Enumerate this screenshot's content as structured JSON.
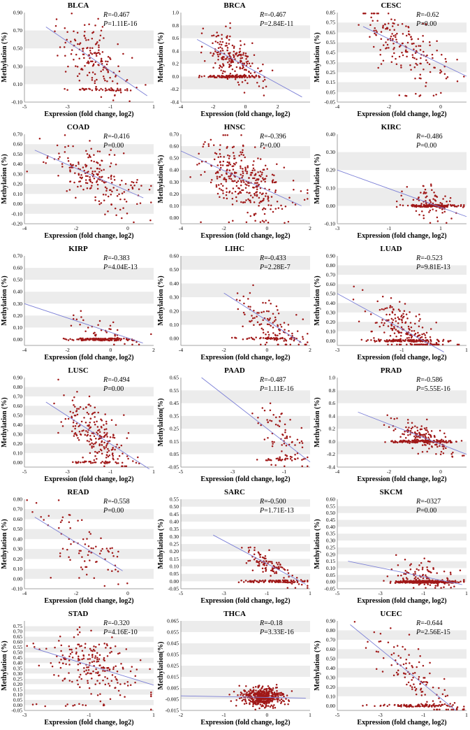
{
  "figure": {
    "colors": {
      "point": "#a01818",
      "fit_line": "#7b7fd6",
      "band": "#ececec",
      "axis": "#888888"
    }
  },
  "chart_data": [
    {
      "type": "scatter",
      "title": "BLCA",
      "xlabel": "Expression (fold change, log2)",
      "ylabel": "Methylation (%)",
      "xlim": [
        -5,
        1
      ],
      "xticks": [
        "-5",
        "-3",
        "-1",
        "1"
      ],
      "ylim": [
        -0.1,
        0.9
      ],
      "yticks": [
        "-0.10",
        "0.10",
        "0.30",
        "0.50",
        "0.70",
        "0.90"
      ],
      "fit": [
        [
          -4,
          0.74
        ],
        [
          0.7,
          -0.03
        ]
      ],
      "r_label": "R",
      "r_value": "=-0.467",
      "p_label": "P",
      "p_value": "=1.11E-16",
      "n_points": 200,
      "x_mean": -1.6,
      "x_sd": 0.85,
      "jitter": 0.17,
      "floor": 0.04,
      "floor_frac": 0.18,
      "seed": 1
    },
    {
      "type": "scatter",
      "title": "BRCA",
      "xlabel": "Expression (fold change, log2)",
      "ylabel": "Methylation (%)",
      "xlim": [
        -4,
        4
      ],
      "xticks": [
        "-4",
        "-2",
        "0",
        "2"
      ],
      "ylim": [
        -0.4,
        1.0
      ],
      "yticks": [
        "-0.4",
        "-0.2",
        "0.0",
        "0.2",
        "0.4",
        "0.6",
        "0.8",
        "1.0"
      ],
      "fit": [
        [
          -3,
          0.58
        ],
        [
          3.5,
          -0.32
        ]
      ],
      "r_label": "R",
      "r_value": "=-0.467",
      "p_label": "P",
      "p_value": "=2.84E-11",
      "n_points": 320,
      "x_mean": -0.8,
      "x_sd": 0.9,
      "jitter": 0.16,
      "floor": 0.0,
      "floor_frac": 0.4,
      "seed": 2
    },
    {
      "type": "scatter",
      "title": "CESC",
      "xlabel": "Expression (fold change, log2)",
      "ylabel": "Methylation (%)",
      "xlim": [
        -4,
        1
      ],
      "xticks": [
        "-4",
        "-2",
        "0"
      ],
      "ylim": [
        -0.05,
        0.85
      ],
      "yticks": [
        "-0.05",
        "0.05",
        "0.15",
        "0.25",
        "0.35",
        "0.45",
        "0.55",
        "0.65",
        "0.75",
        "0.85"
      ],
      "fit": [
        [
          -3,
          0.71
        ],
        [
          1,
          0.21
        ]
      ],
      "r_label": "R",
      "r_value": "=-0.62",
      "p_label": "P",
      "p_value": "=0.00",
      "n_points": 180,
      "x_mean": -1.4,
      "x_sd": 0.8,
      "jitter": 0.15,
      "floor": 0.02,
      "floor_frac": 0.05,
      "seed": 3
    },
    {
      "type": "scatter",
      "title": "COAD",
      "xlabel": "Expression (fold change, log2)",
      "ylabel": "Methylation (%)",
      "xlim": [
        -4,
        1
      ],
      "xticks": [
        "-4",
        "-2",
        "0"
      ],
      "ylim": [
        -0.2,
        0.7
      ],
      "yticks": [
        "-0.20",
        "-0.10",
        "0.00",
        "0.10",
        "0.20",
        "0.30",
        "0.40",
        "0.50",
        "0.60",
        "0.70"
      ],
      "fit": [
        [
          -3.6,
          0.54
        ],
        [
          0.6,
          0.06
        ]
      ],
      "r_label": "R",
      "r_value": "=-0.416",
      "p_label": "P",
      "p_value": "=0.00",
      "n_points": 200,
      "x_mean": -1.3,
      "x_sd": 0.9,
      "jitter": 0.14,
      "floor": 0.0,
      "floor_frac": 0.03,
      "seed": 4
    },
    {
      "type": "scatter",
      "title": "HNSC",
      "xlabel": "Expression (fold change, log2)",
      "ylabel": "Methylation(%)",
      "xlim": [
        -4,
        2
      ],
      "xticks": [
        "-4",
        "-2",
        "0",
        "2"
      ],
      "ylim": [
        -0.05,
        0.7
      ],
      "yticks": [
        "0.00",
        "0.10",
        "0.20",
        "0.30",
        "0.40",
        "0.50",
        "0.60",
        "0.70"
      ],
      "fit": [
        [
          -4,
          0.56
        ],
        [
          1.6,
          0.1
        ]
      ],
      "r_label": "R",
      "r_value": "=-0.396",
      "p_label": "P",
      "p_value": "=0.00",
      "n_points": 330,
      "x_mean": -1.1,
      "x_sd": 1.0,
      "jitter": 0.13,
      "floor": -0.03,
      "floor_frac": 0.04,
      "seed": 5
    },
    {
      "type": "scatter",
      "title": "KIRC",
      "xlabel": "Expression (fold change, log2)",
      "ylabel": "Methylation (%)",
      "xlim": [
        -3,
        2
      ],
      "xticks": [
        "-3",
        "-1",
        "1"
      ],
      "ylim": [
        -0.1,
        0.4
      ],
      "yticks": [
        "-0.10",
        "0.00",
        "0.10",
        "0.20",
        "0.30",
        "0.40"
      ],
      "fit": [
        [
          -3,
          0.2
        ],
        [
          2,
          -0.06
        ]
      ],
      "r_label": "R",
      "r_value": "=-0.486",
      "p_label": "P",
      "p_value": "=0.00",
      "n_points": 260,
      "x_mean": 0.7,
      "x_sd": 0.5,
      "jitter": 0.05,
      "floor": 0.0,
      "floor_frac": 0.7,
      "seed": 6
    },
    {
      "type": "scatter",
      "title": "KIRP",
      "xlabel": "Expression (fold change, log2)",
      "ylabel": "Methylation (%)",
      "xlim": [
        -4,
        2
      ],
      "xticks": [
        "-4",
        "-2",
        "0",
        "2"
      ],
      "ylim": [
        -0.05,
        0.7
      ],
      "yticks": [
        "0.00",
        "0.10",
        "0.20",
        "0.30",
        "0.40",
        "0.50",
        "0.60",
        "0.70"
      ],
      "fit": [
        [
          -4,
          0.3
        ],
        [
          1.5,
          -0.03
        ]
      ],
      "r_label": "R",
      "r_value": "=-0.383",
      "p_label": "P",
      "p_value": "=4.04E-13",
      "n_points": 180,
      "x_mean": -0.5,
      "x_sd": 0.8,
      "jitter": 0.05,
      "floor": 0.0,
      "floor_frac": 0.8,
      "seed": 7
    },
    {
      "type": "scatter",
      "title": "LIHC",
      "xlabel": "Expression (fold change, log2)",
      "ylabel": "Methylation (%)",
      "xlim": [
        -4,
        2
      ],
      "xticks": [
        "-4",
        "-2",
        "0",
        "2"
      ],
      "ylim": [
        -0.05,
        0.6
      ],
      "yticks": [
        "0.00",
        "0.10",
        "0.20",
        "0.30",
        "0.40",
        "0.50",
        "0.60"
      ],
      "fit": [
        [
          -2,
          0.33
        ],
        [
          1.6,
          -0.03
        ]
      ],
      "r_label": "R",
      "r_value": "=-0.433",
      "p_label": "P",
      "p_value": "=2.28E-7",
      "n_points": 160,
      "x_mean": 0.1,
      "x_sd": 0.8,
      "jitter": 0.08,
      "floor": 0.0,
      "floor_frac": 0.3,
      "seed": 8
    },
    {
      "type": "scatter",
      "title": "LUAD",
      "xlabel": "Expression (fold change, log2)",
      "ylabel": "Methylation (%)",
      "xlim": [
        -3,
        1
      ],
      "xticks": [
        "-3",
        "-1",
        "1"
      ],
      "ylim": [
        -0.05,
        0.9
      ],
      "yticks": [
        "0.00",
        "0.10",
        "0.20",
        "0.30",
        "0.40",
        "0.50",
        "0.60",
        "0.70",
        "0.80",
        "0.90"
      ],
      "fit": [
        [
          -3,
          0.5
        ],
        [
          0.3,
          -0.12
        ]
      ],
      "r_label": "R",
      "r_value": "=-0.523",
      "p_label": "P",
      "p_value": "=9.81E-13",
      "n_points": 330,
      "x_mean": -0.8,
      "x_sd": 0.6,
      "jitter": 0.12,
      "floor": 0.0,
      "floor_frac": 0.4,
      "seed": 9
    },
    {
      "type": "scatter",
      "title": "LUSC",
      "xlabel": "Expression (fold change, log2)",
      "ylabel": "Methylation (%)",
      "xlim": [
        -5,
        1
      ],
      "xticks": [
        "-5",
        "-3",
        "-1",
        "1"
      ],
      "ylim": [
        -0.05,
        0.9
      ],
      "yticks": [
        "0.00",
        "0.10",
        "0.20",
        "0.30",
        "0.40",
        "0.50",
        "0.60",
        "0.70",
        "0.80",
        "0.90"
      ],
      "fit": [
        [
          -4,
          0.64
        ],
        [
          0.8,
          -0.07
        ]
      ],
      "r_label": "R",
      "r_value": "=-0.494",
      "p_label": "P",
      "p_value": "=0.00",
      "n_points": 240,
      "x_mean": -1.7,
      "x_sd": 0.7,
      "jitter": 0.14,
      "floor": 0.0,
      "floor_frac": 0.15,
      "seed": 10
    },
    {
      "type": "scatter",
      "title": "PAAD",
      "xlabel": "Expression (fold change, log2)",
      "ylabel": "Methylation(%)",
      "xlim": [
        -5,
        0
      ],
      "xticks": [
        "-5",
        "-3",
        "-1"
      ],
      "ylim": [
        -0.05,
        0.65
      ],
      "yticks": [
        "-0.05",
        "0.05",
        "0.15",
        "0.25",
        "0.35",
        "0.45",
        "0.55",
        "0.65"
      ],
      "fit": [
        [
          -4.2,
          0.65
        ],
        [
          0,
          -0.01
        ]
      ],
      "r_label": "R",
      "r_value": "=-0.487",
      "p_label": "P",
      "p_value": "=1.11E-16",
      "n_points": 100,
      "x_mean": -1.1,
      "x_sd": 0.5,
      "jitter": 0.12,
      "floor": 0.01,
      "floor_frac": 0.2,
      "seed": 11
    },
    {
      "type": "scatter",
      "title": "PRAD",
      "xlabel": "Expression (fold change, log2)",
      "ylabel": "Methylation (%)",
      "xlim": [
        -4,
        1
      ],
      "xticks": [
        "-4",
        "-2",
        "0"
      ],
      "ylim": [
        -0.4,
        1.0
      ],
      "yticks": [
        "-0.4",
        "-0.2",
        "0.0",
        "0.2",
        "0.4",
        "0.6",
        "0.8",
        "1.0"
      ],
      "fit": [
        [
          -3.2,
          0.46
        ],
        [
          1,
          -0.2
        ]
      ],
      "r_label": "R",
      "r_value": "=-0.586",
      "p_label": "P",
      "p_value": "=5.55E-16",
      "n_points": 280,
      "x_mean": -0.7,
      "x_sd": 0.6,
      "jitter": 0.1,
      "floor": 0.0,
      "floor_frac": 0.5,
      "seed": 12
    },
    {
      "type": "scatter",
      "title": "READ",
      "xlabel": "Expression (fold change, log2)",
      "ylabel": "Methylation (%)",
      "xlim": [
        -4,
        1
      ],
      "xticks": [
        "-4",
        "-2",
        "0"
      ],
      "ylim": [
        -0.1,
        0.8
      ],
      "yticks": [
        "-0.10",
        "0.00",
        "0.10",
        "0.20",
        "0.30",
        "0.40",
        "0.50",
        "0.60",
        "0.70",
        "0.80"
      ],
      "fit": [
        [
          -3.6,
          0.62
        ],
        [
          -0.2,
          0.08
        ]
      ],
      "r_label": "R",
      "r_value": "=-0.558",
      "p_label": "P",
      "p_value": "=0.00",
      "n_points": 80,
      "x_mean": -1.6,
      "x_sd": 0.8,
      "jitter": 0.13,
      "floor": 0.0,
      "floor_frac": 0.03,
      "seed": 13
    },
    {
      "type": "scatter",
      "title": "SARC",
      "xlabel": "Expression (fold change, log2)",
      "ylabel": "Methylation (%)",
      "xlim": [
        -5,
        1
      ],
      "xticks": [
        "-5",
        "-3",
        "-1",
        "1"
      ],
      "ylim": [
        -0.05,
        0.55
      ],
      "yticks": [
        "-0.05",
        "0.00",
        "0.05",
        "0.10",
        "0.15",
        "0.20",
        "0.25",
        "0.30",
        "0.35",
        "0.40",
        "0.45",
        "0.50",
        "0.55"
      ],
      "fit": [
        [
          -3.5,
          0.31
        ],
        [
          0.8,
          -0.02
        ]
      ],
      "r_label": "R",
      "r_value": "=-0.500",
      "p_label": "P",
      "p_value": "=1.71E-13",
      "n_points": 200,
      "x_mean": -0.7,
      "x_sd": 0.7,
      "jitter": 0.04,
      "floor": 0.0,
      "floor_frac": 0.5,
      "seed": 14
    },
    {
      "type": "scatter",
      "title": "SKCM",
      "xlabel": "Expression (fold change, log2)",
      "ylabel": "Methylation (%)",
      "xlim": [
        -5,
        1
      ],
      "xticks": [
        "-5",
        "-3",
        "-1",
        "1"
      ],
      "ylim": [
        -0.05,
        0.6
      ],
      "yticks": [
        "-0.05",
        "0.00",
        "0.05",
        "0.10",
        "0.15",
        "0.20",
        "0.25",
        "0.30",
        "0.35",
        "0.40",
        "0.45",
        "0.50",
        "0.55",
        "0.60"
      ],
      "fit": [
        [
          -4.5,
          0.15
        ],
        [
          0.8,
          -0.02
        ]
      ],
      "r_label": "R",
      "r_value": "=-0327",
      "p_label": "P",
      "p_value": "=0.00",
      "n_points": 320,
      "x_mean": -0.9,
      "x_sd": 0.8,
      "jitter": 0.05,
      "floor": 0.0,
      "floor_frac": 0.65,
      "seed": 15
    },
    {
      "type": "scatter",
      "title": "STAD",
      "xlabel": "Expression (fold change, log2)",
      "ylabel": "Methylation (%)",
      "xlim": [
        -3,
        1
      ],
      "xticks": [
        "-3",
        "-1",
        "1"
      ],
      "ylim": [
        -0.05,
        0.8
      ],
      "yticks": [
        "-0.05",
        "0.00",
        "0.05",
        "0.10",
        "0.15",
        "0.20",
        "0.25",
        "0.30",
        "0.35",
        "0.40",
        "0.45",
        "0.50",
        "0.55",
        "0.60",
        "0.65",
        "0.70",
        "0.75"
      ],
      "fit": [
        [
          -2.7,
          0.54
        ],
        [
          1,
          0.19
        ]
      ],
      "r_label": "R",
      "r_value": "=-0.320",
      "p_label": "P",
      "p_value": "=4.16E-10",
      "n_points": 220,
      "x_mean": -0.9,
      "x_sd": 0.8,
      "jitter": 0.15,
      "floor": 0.0,
      "floor_frac": 0.05,
      "seed": 16
    },
    {
      "type": "scatter",
      "title": "THCA",
      "xlabel": "Expression (fold change, log2)",
      "ylabel": "Methylation(%)",
      "xlim": [
        -2,
        1
      ],
      "xticks": [
        "-2",
        "-1",
        "0",
        "1"
      ],
      "ylim": [
        -0.015,
        0.065
      ],
      "yticks": [
        "-0.015",
        "-0.005",
        "0.005",
        "0.015",
        "0.025",
        "0.035",
        "0.045",
        "0.055",
        "0.065"
      ],
      "fit": [
        [
          -2,
          -0.002
        ],
        [
          0.9,
          -0.004
        ]
      ],
      "r_label": "R",
      "r_value": "=-0.18",
      "p_label": "P",
      "p_value": "=3.33E-16",
      "n_points": 420,
      "x_mean": -0.1,
      "x_sd": 0.25,
      "jitter": 0.004,
      "floor": -0.003,
      "floor_frac": 0.0,
      "seed": 17
    },
    {
      "type": "scatter",
      "title": "UCEC",
      "xlabel": "Expression (fold change, log2)",
      "ylabel": "Methylation (%)",
      "xlim": [
        -5,
        1
      ],
      "xticks": [
        "-5",
        "-3",
        "-1",
        "1"
      ],
      "ylim": [
        -0.05,
        0.9
      ],
      "yticks": [
        "0.00",
        "0.10",
        "0.20",
        "0.30",
        "0.40",
        "0.50",
        "0.60",
        "0.70",
        "0.80",
        "0.90"
      ],
      "fit": [
        [
          -4.4,
          0.86
        ],
        [
          0.5,
          -0.05
        ]
      ],
      "r_label": "R",
      "r_value": "=-0.644",
      "p_label": "P",
      "p_value": "=2.56E-15",
      "n_points": 200,
      "x_mean": -1.2,
      "x_sd": 1.0,
      "jitter": 0.12,
      "floor": 0.0,
      "floor_frac": 0.35,
      "seed": 18
    }
  ]
}
